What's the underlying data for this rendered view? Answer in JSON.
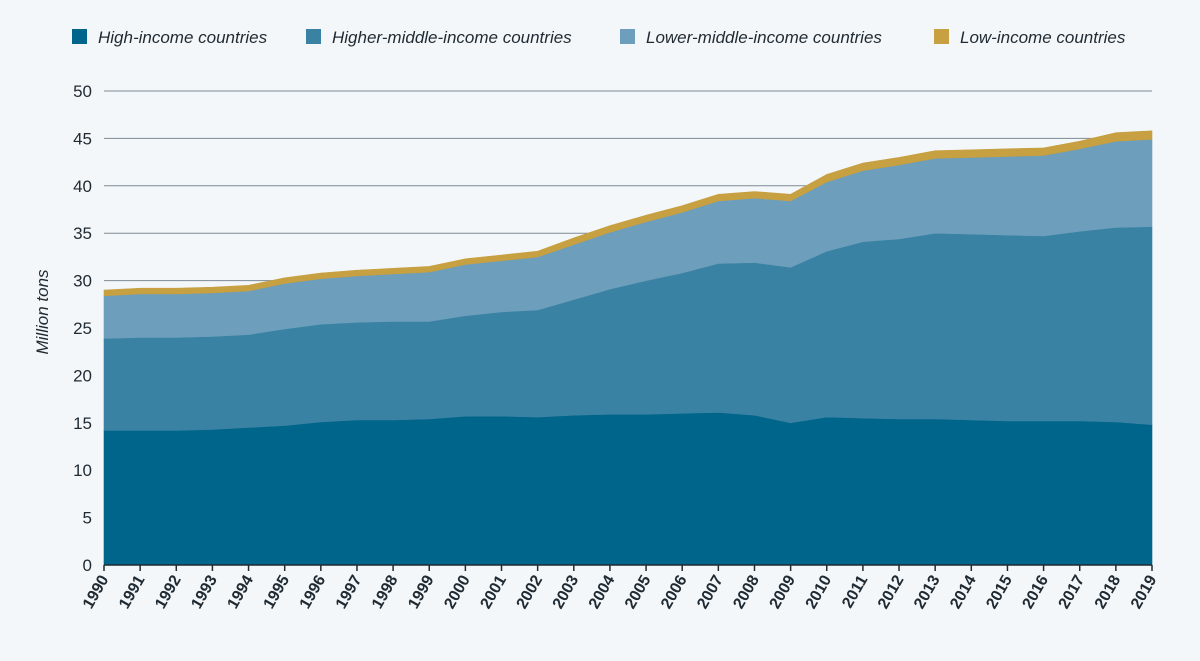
{
  "chart_data": {
    "type": "area",
    "stacked": true,
    "ylabel": "Million tons",
    "xlabel": "",
    "ylim": [
      0,
      50
    ],
    "yticks": [
      0,
      5,
      10,
      15,
      20,
      25,
      30,
      35,
      40,
      45,
      50
    ],
    "grid": true,
    "legend_position": "top",
    "x": [
      "1990",
      "1991",
      "1992",
      "1993",
      "1994",
      "1995",
      "1996",
      "1997",
      "1998",
      "1999",
      "2000",
      "2001",
      "2002",
      "2003",
      "2004",
      "2005",
      "2006",
      "2007",
      "2008",
      "2009",
      "2010",
      "2011",
      "2012",
      "2013",
      "2014",
      "2015",
      "2016",
      "2017",
      "2018",
      "2019"
    ],
    "series": [
      {
        "name": "High-income countries",
        "color": "#00658a",
        "values": [
          14.2,
          14.2,
          14.2,
          14.3,
          14.5,
          14.7,
          15.1,
          15.3,
          15.3,
          15.4,
          15.7,
          15.7,
          15.6,
          15.8,
          15.9,
          15.9,
          16.0,
          16.1,
          15.8,
          15.0,
          15.6,
          15.5,
          15.4,
          15.4,
          15.3,
          15.2,
          15.2,
          15.2,
          15.1,
          14.8
        ]
      },
      {
        "name": "Higher-middle-income countries",
        "color": "#3a82a3",
        "values": [
          9.7,
          9.8,
          9.8,
          9.8,
          9.8,
          10.2,
          10.3,
          10.3,
          10.4,
          10.3,
          10.6,
          11.0,
          11.3,
          12.2,
          13.2,
          14.1,
          14.8,
          15.7,
          16.1,
          16.4,
          17.5,
          18.6,
          19.0,
          19.6,
          19.6,
          19.6,
          19.5,
          20.0,
          20.5,
          20.9
        ]
      },
      {
        "name": "Lower-middle-income countries",
        "color": "#6d9ebc",
        "values": [
          4.5,
          4.6,
          4.6,
          4.6,
          4.6,
          4.8,
          4.8,
          4.9,
          5.0,
          5.2,
          5.4,
          5.4,
          5.6,
          5.8,
          6.0,
          6.2,
          6.4,
          6.6,
          6.8,
          7.0,
          7.3,
          7.5,
          7.8,
          7.9,
          8.1,
          8.3,
          8.5,
          8.7,
          9.1,
          9.2
        ]
      },
      {
        "name": "Low-income countries",
        "color": "#c6a041",
        "values": [
          0.6,
          0.6,
          0.6,
          0.6,
          0.6,
          0.6,
          0.6,
          0.6,
          0.6,
          0.6,
          0.6,
          0.6,
          0.6,
          0.7,
          0.7,
          0.7,
          0.7,
          0.7,
          0.7,
          0.7,
          0.8,
          0.8,
          0.8,
          0.8,
          0.8,
          0.8,
          0.8,
          0.8,
          0.9,
          0.9
        ]
      }
    ]
  }
}
